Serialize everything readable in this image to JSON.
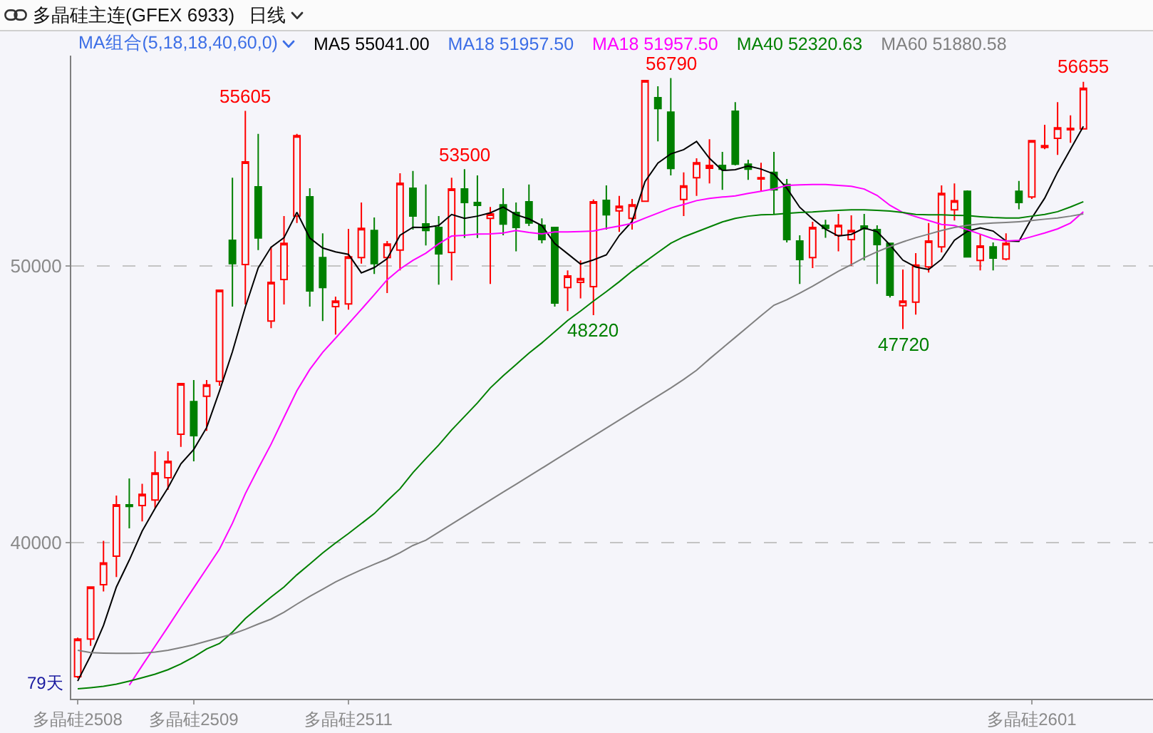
{
  "chart_data": {
    "type": "candlestick",
    "title": "多晶硅主连(GFEX 6933)",
    "subtitle": "日线",
    "legend_title": "MA组合(5,18,18,40,60,0)",
    "legend": "top",
    "grid": "y",
    "categories": [
      "多晶硅2508",
      null,
      null,
      null,
      null,
      null,
      null,
      null,
      null,
      "多晶硅2509",
      null,
      null,
      null,
      null,
      null,
      null,
      null,
      null,
      null,
      null,
      null,
      "多晶硅2511",
      null,
      null,
      null,
      null,
      null,
      null,
      null,
      null,
      null,
      null,
      null,
      null,
      null,
      null,
      null,
      null,
      null,
      null,
      null,
      null,
      null,
      null,
      null,
      null,
      null,
      null,
      null,
      null,
      null,
      null,
      null,
      null,
      null,
      null,
      null,
      null,
      null,
      null,
      null,
      null,
      null,
      null,
      null,
      null,
      null,
      null,
      null,
      null,
      null,
      null,
      null,
      null,
      "多晶硅2601",
      null,
      null,
      null,
      null
    ],
    "ohlc": [
      [
        35160,
        36570,
        35100,
        36520
      ],
      [
        36520,
        38400,
        36270,
        38400
      ],
      [
        38480,
        40070,
        38240,
        39270
      ],
      [
        39510,
        41700,
        38760,
        41370
      ],
      [
        41370,
        42320,
        40520,
        41310
      ],
      [
        41340,
        42130,
        40770,
        41750
      ],
      [
        41540,
        43300,
        41260,
        42520
      ],
      [
        42350,
        43300,
        41910,
        42940
      ],
      [
        43920,
        45750,
        43460,
        45750
      ],
      [
        45100,
        45880,
        42940,
        43870
      ],
      [
        45290,
        45880,
        44040,
        45700
      ],
      [
        45830,
        49120,
        45670,
        49120
      ],
      [
        50930,
        53190,
        48530,
        50080
      ],
      [
        50050,
        55605,
        48610,
        53760
      ],
      [
        52860,
        54770,
        50570,
        51010
      ],
      [
        48010,
        50690,
        47750,
        49410
      ],
      [
        49510,
        51800,
        48610,
        50820
      ],
      [
        51800,
        54770,
        51550,
        54710
      ],
      [
        52500,
        52810,
        48530,
        49100
      ],
      [
        50300,
        51180,
        48010,
        49220
      ],
      [
        48530,
        48890,
        47520,
        48730
      ],
      [
        48630,
        51340,
        48420,
        50330
      ],
      [
        50300,
        52290,
        50080,
        51360
      ],
      [
        51280,
        51750,
        49710,
        50080
      ],
      [
        50300,
        50900,
        49020,
        50790
      ],
      [
        50570,
        53350,
        49840,
        52990
      ],
      [
        52810,
        53430,
        51310,
        51800
      ],
      [
        51520,
        52940,
        50740,
        51280
      ],
      [
        51390,
        51800,
        49320,
        50440
      ],
      [
        50490,
        53190,
        49480,
        52780
      ],
      [
        52780,
        53500,
        51010,
        52290
      ],
      [
        52290,
        53270,
        51010,
        52190
      ],
      [
        51720,
        52130,
        49350,
        51880
      ],
      [
        52210,
        52810,
        51110,
        51510
      ],
      [
        51930,
        52290,
        50530,
        51390
      ],
      [
        52320,
        52940,
        51440,
        51550
      ],
      [
        51470,
        51720,
        50820,
        50950
      ],
      [
        51390,
        51390,
        48530,
        48660
      ],
      [
        49220,
        49840,
        48370,
        49640
      ],
      [
        49410,
        50200,
        48830,
        49540
      ],
      [
        49250,
        52400,
        48220,
        52320
      ],
      [
        52370,
        52910,
        51310,
        51850
      ],
      [
        51990,
        52530,
        51230,
        52160
      ],
      [
        51720,
        52420,
        51310,
        52210
      ],
      [
        52340,
        56720,
        52340,
        56700
      ],
      [
        56080,
        56490,
        54500,
        55690
      ],
      [
        55560,
        56790,
        53270,
        53520
      ],
      [
        52400,
        53380,
        51800,
        52890
      ],
      [
        53190,
        53890,
        52530,
        53730
      ],
      [
        53530,
        54580,
        52980,
        53630
      ],
      [
        53630,
        54120,
        52750,
        53500
      ],
      [
        55590,
        55920,
        53630,
        53680
      ],
      [
        53680,
        53840,
        53110,
        53500
      ],
      [
        53140,
        53730,
        52700,
        53190
      ],
      [
        53380,
        54120,
        51880,
        52750
      ],
      [
        52940,
        53140,
        50850,
        50950
      ],
      [
        50900,
        51110,
        49350,
        50230
      ],
      [
        50300,
        51600,
        49920,
        51390
      ],
      [
        51470,
        51670,
        51020,
        51360
      ],
      [
        51110,
        51880,
        50530,
        51470
      ],
      [
        50950,
        51830,
        50000,
        51280
      ],
      [
        51440,
        51880,
        50200,
        51340
      ],
      [
        51310,
        51470,
        49350,
        50770
      ],
      [
        50820,
        50820,
        48860,
        48940
      ],
      [
        48560,
        49870,
        47720,
        48730
      ],
      [
        48690,
        50460,
        48240,
        50030
      ],
      [
        49970,
        51550,
        49760,
        50900
      ],
      [
        50690,
        52910,
        50490,
        52620
      ],
      [
        52030,
        52980,
        51640,
        52360
      ],
      [
        52700,
        52730,
        50300,
        50330
      ],
      [
        50200,
        51150,
        49840,
        50720
      ],
      [
        50690,
        50850,
        49840,
        50280
      ],
      [
        50250,
        51180,
        50200,
        50820
      ],
      [
        52700,
        53070,
        52050,
        52290
      ],
      [
        52490,
        54530,
        52420,
        54530
      ],
      [
        54280,
        55100,
        54220,
        54350
      ],
      [
        54610,
        55920,
        54010,
        54990
      ],
      [
        54920,
        55440,
        54450,
        54970
      ],
      [
        54950,
        56655,
        54950,
        56420
      ]
    ],
    "colors": [
      "#ff0000",
      "#ff0000",
      "#ff0000",
      "#ff0000",
      "#008000",
      "#ff0000",
      "#ff0000",
      "#ff0000",
      "#ff0000",
      "#008000",
      "#ff0000",
      "#ff0000",
      "#008000",
      "#ff0000",
      "#008000",
      "#ff0000",
      "#ff0000",
      "#ff0000",
      "#008000",
      "#008000",
      "#ff0000",
      "#ff0000",
      "#ff0000",
      "#008000",
      "#ff0000",
      "#ff0000",
      "#008000",
      "#008000",
      "#008000",
      "#ff0000",
      "#008000",
      "#008000",
      "#ff0000",
      "#008000",
      "#008000",
      "#008000",
      "#008000",
      "#008000",
      "#ff0000",
      "#ff0000",
      "#ff0000",
      "#008000",
      "#ff0000",
      "#ff0000",
      "#ff0000",
      "#008000",
      "#008000",
      "#ff0000",
      "#ff0000",
      "#ff0000",
      "#008000",
      "#008000",
      "#008000",
      "#ff0000",
      "#008000",
      "#008000",
      "#008000",
      "#ff0000",
      "#008000",
      "#ff0000",
      "#ff0000",
      "#008000",
      "#008000",
      "#008000",
      "#ff0000",
      "#ff0000",
      "#ff0000",
      "#ff0000",
      "#ff0000",
      "#008000",
      "#ff0000",
      "#008000",
      "#ff0000",
      "#008000",
      "#ff0000",
      "#ff0000",
      "#ff0000",
      "#ff0000",
      "#ff0000"
    ],
    "series": [
      {
        "name": "MA5 55041.00",
        "color": "#000000",
        "type": "line",
        "values": [
          35000,
          35920,
          37010,
          38400,
          39370,
          40420,
          41240,
          41980,
          42850,
          43370,
          44160,
          45480,
          46900,
          48510,
          49930,
          50680,
          51020,
          51940,
          51010,
          50650,
          50510,
          50420,
          49750,
          49940,
          50260,
          51110,
          51400,
          51390,
          51460,
          51860,
          51720,
          51800,
          51920,
          52130,
          51850,
          51700,
          51460,
          50810,
          50440,
          50070,
          50220,
          50400,
          51100,
          51610,
          53050,
          53720,
          54050,
          54200,
          54500,
          53890,
          53450,
          53480,
          53610,
          53500,
          53320,
          52810,
          52120,
          51700,
          51330,
          51080,
          51140,
          51370,
          51240,
          50760,
          50210,
          49960,
          49870,
          50240,
          50930,
          51250,
          51380,
          51260,
          50900,
          50890,
          51730,
          52450,
          53390,
          54220,
          55040
        ]
      },
      {
        "name": "MA18 51957.50",
        "color": "#3c6ee6",
        "type": "line",
        "values": [
          null,
          null,
          null,
          null,
          null,
          null,
          null,
          null,
          null,
          null,
          null,
          null,
          null,
          null,
          null,
          null,
          null,
          null,
          null,
          null,
          null,
          null,
          null,
          null,
          null,
          null,
          null,
          null,
          null,
          null,
          null,
          null,
          null,
          null,
          null,
          null,
          null,
          null,
          null,
          null,
          null,
          null,
          null,
          null,
          null,
          null,
          null,
          null,
          null,
          null,
          null,
          null,
          null,
          null,
          null,
          null,
          null,
          null,
          null,
          null,
          null,
          null,
          null,
          null,
          null,
          null,
          null,
          null,
          null,
          null,
          null,
          null,
          null,
          null,
          null,
          null,
          null,
          null,
          null
        ]
      },
      {
        "name": "MA18 51957.50",
        "color": "#ff00ff",
        "type": "line",
        "values": [
          null,
          null,
          null,
          null,
          34850,
          35560,
          36260,
          36960,
          37670,
          38370,
          39070,
          39770,
          40700,
          41770,
          42680,
          43560,
          44530,
          45490,
          46260,
          46880,
          47390,
          47910,
          48430,
          48960,
          49500,
          49890,
          50200,
          50460,
          50800,
          51080,
          51110,
          51150,
          51160,
          51190,
          51280,
          51210,
          51160,
          51230,
          51230,
          51240,
          51260,
          51360,
          51440,
          51540,
          51730,
          51910,
          52090,
          52220,
          52360,
          52440,
          52490,
          52530,
          52620,
          52700,
          52780,
          52910,
          52930,
          52940,
          52940,
          52910,
          52880,
          52780,
          52550,
          52190,
          51930,
          51780,
          51640,
          51500,
          51460,
          51310,
          51150,
          50980,
          50900,
          50930,
          51060,
          51190,
          51340,
          51550,
          51960
        ]
      },
      {
        "name": "MA40 52320.63",
        "color": "#008000",
        "type": "line",
        "values": [
          34720,
          34760,
          34810,
          34890,
          35000,
          35120,
          35250,
          35410,
          35620,
          35870,
          36160,
          36360,
          36770,
          37260,
          37650,
          38040,
          38400,
          38840,
          39230,
          39630,
          39990,
          40330,
          40690,
          41050,
          41510,
          41950,
          42530,
          43040,
          43530,
          44070,
          44560,
          45050,
          45590,
          46030,
          46440,
          46850,
          47220,
          47620,
          48030,
          48370,
          48730,
          49070,
          49430,
          49810,
          50150,
          50490,
          50820,
          51050,
          51230,
          51410,
          51590,
          51720,
          51800,
          51850,
          51860,
          51900,
          51930,
          51950,
          51980,
          52010,
          52030,
          52030,
          52010,
          51980,
          51930,
          51860,
          51850,
          51850,
          51830,
          51820,
          51780,
          51750,
          51730,
          51730,
          51800,
          51860,
          51960,
          52130,
          52320
        ]
      },
      {
        "name": "MA60 51880.58",
        "color": "#808080",
        "type": "line",
        "values": [
          36110,
          36030,
          36010,
          36000,
          36000,
          36010,
          36050,
          36110,
          36210,
          36310,
          36440,
          36570,
          36700,
          36870,
          37060,
          37240,
          37490,
          37780,
          38060,
          38320,
          38580,
          38810,
          39020,
          39220,
          39410,
          39640,
          39900,
          40090,
          40380,
          40670,
          40960,
          41250,
          41540,
          41830,
          42110,
          42400,
          42690,
          42980,
          43270,
          43560,
          43850,
          44140,
          44430,
          44720,
          45010,
          45300,
          45590,
          45900,
          46230,
          46640,
          47030,
          47420,
          47810,
          48200,
          48580,
          48780,
          49020,
          49270,
          49540,
          49810,
          50050,
          50300,
          50510,
          50700,
          50870,
          51020,
          51150,
          51280,
          51390,
          51470,
          51520,
          51550,
          51570,
          51600,
          51640,
          51690,
          51730,
          51800,
          51880
        ]
      }
    ],
    "annotations": [
      {
        "text": "55605",
        "y": 55605
      },
      {
        "text": "53500",
        "y": 53500
      },
      {
        "text": "48220",
        "y": 48220
      },
      {
        "text": "56790",
        "y": 56790
      },
      {
        "text": "47720",
        "y": 47720
      },
      {
        "text": "56655",
        "y": 56655
      },
      "79天"
    ],
    "ylim": [
      34360,
      57600
    ],
    "yticks": [
      40000,
      50000
    ]
  }
}
